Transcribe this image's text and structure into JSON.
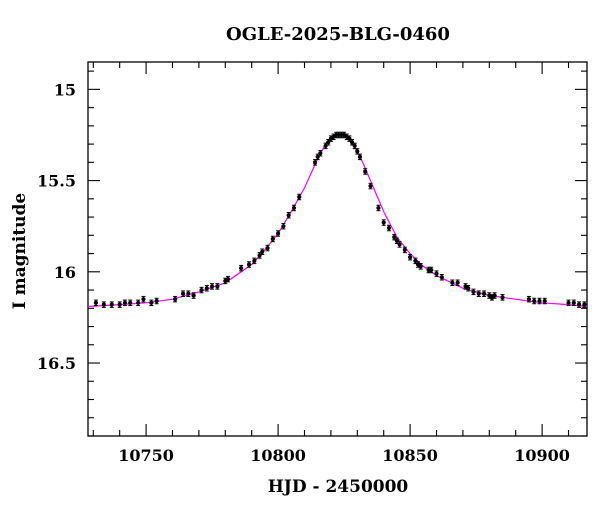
{
  "chart_data": {
    "type": "scatter",
    "title": "OGLE-2025-BLG-0460",
    "xlabel": "HJD - 2450000",
    "ylabel": "I magnitude",
    "xlim": [
      10728,
      10917
    ],
    "ylim": [
      16.9,
      14.85
    ],
    "y_inverted": true,
    "x_ticks": [
      10750,
      10800,
      10850,
      10900
    ],
    "y_ticks": [
      15,
      15.5,
      16,
      16.5
    ],
    "x_tick_labels": [
      "10750",
      "10800",
      "10850",
      "10900"
    ],
    "y_tick_labels": [
      "15",
      "15.5",
      "16",
      "16.5"
    ],
    "grid": false,
    "legend": "none",
    "colors": {
      "model": "#ff00ff",
      "points": "#000000",
      "frame": "#000000"
    },
    "series": [
      {
        "kind": "points_with_errorbars",
        "error": 0.015,
        "x": [
          10731,
          10734,
          10737,
          10740,
          10742,
          10744,
          10747,
          10749,
          10752,
          10754,
          10761,
          10764,
          10766,
          10768,
          10771,
          10773,
          10775,
          10777,
          10780,
          10781,
          10786,
          10789,
          10791,
          10793,
          10794,
          10796,
          10798,
          10800,
          10802,
          10804,
          10806,
          10808,
          10814,
          10815,
          10816,
          10818,
          10819,
          10820,
          10821,
          10822,
          10823,
          10824,
          10825,
          10826,
          10827,
          10828,
          10829,
          10830,
          10831,
          10833,
          10835,
          10838,
          10840,
          10842,
          10844,
          10845,
          10846,
          10848,
          10850,
          10852,
          10853,
          10854,
          10857,
          10858,
          10860,
          10862,
          10866,
          10868,
          10871,
          10872,
          10874,
          10876,
          10878,
          10880,
          10881,
          10882,
          10885,
          10895,
          10897,
          10899,
          10901,
          10910,
          10912,
          10914,
          10916
        ],
        "y": [
          16.17,
          16.18,
          16.18,
          16.18,
          16.17,
          16.17,
          16.17,
          16.15,
          16.17,
          16.16,
          16.15,
          16.12,
          16.12,
          16.13,
          16.1,
          16.09,
          16.08,
          16.08,
          16.05,
          16.04,
          15.98,
          15.96,
          15.94,
          15.91,
          15.89,
          15.87,
          15.82,
          15.79,
          15.75,
          15.69,
          15.65,
          15.59,
          15.4,
          15.37,
          15.35,
          15.31,
          15.29,
          15.27,
          15.26,
          15.25,
          15.25,
          15.25,
          15.25,
          15.26,
          15.27,
          15.29,
          15.31,
          15.34,
          15.37,
          15.45,
          15.53,
          15.65,
          15.73,
          15.76,
          15.81,
          15.83,
          15.85,
          15.88,
          15.92,
          15.94,
          15.96,
          15.97,
          15.99,
          15.99,
          16.01,
          16.03,
          16.06,
          16.06,
          16.08,
          16.09,
          16.11,
          16.12,
          16.12,
          16.13,
          16.14,
          16.13,
          16.14,
          16.15,
          16.16,
          16.16,
          16.16,
          16.17,
          16.17,
          16.18,
          16.18
        ]
      },
      {
        "kind": "model_curve",
        "x": [
          10728,
          10740,
          10750,
          10760,
          10770,
          10780,
          10790,
          10795,
          10800,
          10805,
          10810,
          10815,
          10818,
          10820,
          10822,
          10823,
          10824,
          10826,
          10828,
          10830,
          10832,
          10835,
          10840,
          10845,
          10850,
          10855,
          10860,
          10870,
          10880,
          10890,
          10900,
          10910,
          10917
        ],
        "y": [
          16.19,
          16.18,
          16.17,
          16.15,
          16.11,
          16.06,
          15.96,
          15.88,
          15.79,
          15.67,
          15.54,
          15.38,
          15.3,
          15.27,
          15.25,
          15.25,
          15.25,
          15.26,
          15.29,
          15.34,
          15.4,
          15.5,
          15.67,
          15.81,
          15.9,
          15.97,
          16.02,
          16.09,
          16.13,
          16.15,
          16.17,
          16.18,
          16.19
        ]
      }
    ]
  }
}
